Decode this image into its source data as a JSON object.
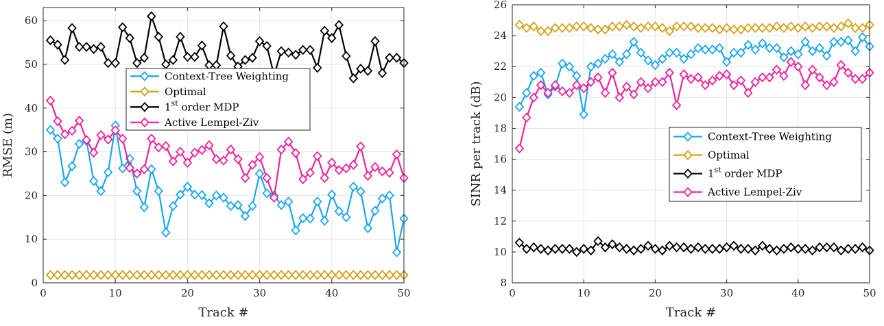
{
  "chart_data": [
    {
      "type": "line",
      "title": "",
      "xlabel": "Track #",
      "ylabel": "RMSE (m)",
      "xlim": [
        0,
        50
      ],
      "ylim": [
        0,
        63
      ],
      "xticks": [
        0,
        10,
        20,
        30,
        40,
        50
      ],
      "yticks": [
        0,
        10,
        20,
        30,
        40,
        50,
        60
      ],
      "grid": true,
      "legend_position": "center",
      "x": [
        1,
        2,
        3,
        4,
        5,
        6,
        7,
        8,
        9,
        10,
        11,
        12,
        13,
        14,
        15,
        16,
        17,
        18,
        19,
        20,
        21,
        22,
        23,
        24,
        25,
        26,
        27,
        28,
        29,
        30,
        31,
        32,
        33,
        34,
        35,
        36,
        37,
        38,
        39,
        40,
        41,
        42,
        43,
        44,
        45,
        46,
        47,
        48,
        49,
        50
      ],
      "series": [
        {
          "name": "Context-Tree Weighting",
          "color": "#1aa7ec",
          "values": [
            35,
            33,
            23,
            26.7,
            31.8,
            32.5,
            23.3,
            21,
            25.3,
            36,
            26.2,
            28.4,
            21,
            17.3,
            26,
            21,
            11.5,
            17.6,
            20.2,
            22,
            20.2,
            20.1,
            18.2,
            20,
            19.5,
            17.6,
            17.8,
            15.3,
            17.6,
            25,
            20.5,
            20,
            17.8,
            18.6,
            12,
            14.8,
            14.7,
            18.6,
            14.2,
            20.2,
            16.4,
            15,
            22,
            20.9,
            12.5,
            16.5,
            19.3,
            20,
            7,
            14.7
          ]
        },
        {
          "name": "Optimal",
          "color": "#d4a017",
          "values": [
            1.8,
            1.8,
            1.8,
            1.8,
            1.8,
            1.8,
            1.8,
            1.8,
            1.8,
            1.8,
            1.8,
            1.8,
            1.8,
            1.8,
            1.8,
            1.8,
            1.8,
            1.8,
            1.8,
            1.8,
            1.8,
            1.8,
            1.8,
            1.8,
            1.8,
            1.8,
            1.8,
            1.8,
            1.8,
            1.8,
            1.8,
            1.8,
            1.8,
            1.8,
            1.8,
            1.8,
            1.8,
            1.8,
            1.8,
            1.8,
            1.8,
            1.8,
            1.8,
            1.8,
            1.8,
            1.8,
            1.8,
            1.8,
            1.8,
            1.8
          ]
        },
        {
          "name": "1st order MDP",
          "color": "#000000",
          "values": [
            55.5,
            54.5,
            51,
            58.3,
            54,
            54,
            53.5,
            54,
            50.3,
            50.3,
            58.5,
            56,
            50.3,
            51.5,
            61,
            56.3,
            50,
            51,
            56.3,
            51.7,
            51.7,
            54.3,
            49.8,
            49.8,
            58.7,
            52,
            49.5,
            51,
            51.5,
            55.3,
            54.2,
            47.5,
            53,
            52.7,
            52.2,
            53.3,
            53.3,
            49.2,
            57.7,
            56,
            59,
            51.9,
            46.8,
            49,
            48.5,
            55.3,
            48,
            51.5,
            51.5,
            50.3
          ]
        },
        {
          "name": "Active Lempel-Ziv",
          "color": "#f0229a",
          "values": [
            41.7,
            37,
            34,
            34.8,
            37.1,
            32.7,
            29.8,
            33.8,
            32.8,
            34.9,
            33,
            26.3,
            25,
            26,
            33,
            31,
            31.3,
            27.8,
            30,
            27.5,
            29.8,
            30.4,
            31.5,
            28.3,
            28,
            30.5,
            28.3,
            24,
            27,
            28.8,
            24,
            19.5,
            30.5,
            32.3,
            29.7,
            23.7,
            25.2,
            29,
            24,
            27.5,
            25.8,
            26.2,
            27,
            31.2,
            24.5,
            26.5,
            25.5,
            25.2,
            29.4,
            24
          ]
        }
      ]
    },
    {
      "type": "line",
      "title": "",
      "xlabel": "Track #",
      "ylabel": "SINR per track (dB)",
      "xlim": [
        0,
        50
      ],
      "ylim": [
        8,
        26
      ],
      "xticks": [
        0,
        10,
        20,
        30,
        40,
        50
      ],
      "yticks": [
        8,
        10,
        12,
        14,
        16,
        18,
        20,
        22,
        24,
        26
      ],
      "grid": true,
      "legend_position": "center-right",
      "x": [
        1,
        2,
        3,
        4,
        5,
        6,
        7,
        8,
        9,
        10,
        11,
        12,
        13,
        14,
        15,
        16,
        17,
        18,
        19,
        20,
        21,
        22,
        23,
        24,
        25,
        26,
        27,
        28,
        29,
        30,
        31,
        32,
        33,
        34,
        35,
        36,
        37,
        38,
        39,
        40,
        41,
        42,
        43,
        44,
        45,
        46,
        47,
        48,
        49,
        50
      ],
      "series": [
        {
          "name": "Context-Tree Weighting",
          "color": "#1aa7ec",
          "values": [
            19.4,
            20.3,
            21.4,
            21.6,
            20.2,
            20.7,
            22.2,
            22,
            21.4,
            18.9,
            22,
            22.2,
            22.5,
            22.8,
            22.3,
            22.8,
            23.6,
            22.9,
            22.4,
            22.1,
            22.5,
            22.9,
            22.9,
            22.5,
            22.8,
            23.2,
            23.1,
            23.1,
            23.2,
            22.3,
            22.9,
            22.9,
            23.4,
            23.1,
            23.5,
            23.2,
            23.2,
            22.6,
            23,
            22.8,
            23.6,
            23,
            23.2,
            22.7,
            23.6,
            23.6,
            23.7,
            23,
            23.9,
            23.3
          ]
        },
        {
          "name": "Optimal",
          "color": "#d4a017",
          "values": [
            24.7,
            24.5,
            24.6,
            24.3,
            24.3,
            24.5,
            24.5,
            24.5,
            24.6,
            24.6,
            24.5,
            24.4,
            24.4,
            24.6,
            24.6,
            24.7,
            24.6,
            24.5,
            24.6,
            24.6,
            24.5,
            24.3,
            24.6,
            24.6,
            24.6,
            24.5,
            24.5,
            24.5,
            24.4,
            24.5,
            24.4,
            24.4,
            24.5,
            24.5,
            24.5,
            24.5,
            24.6,
            24.5,
            24.6,
            24.5,
            24.6,
            24.5,
            24.6,
            24.6,
            24.5,
            24.6,
            24.8,
            24.5,
            24.5,
            24.7
          ]
        },
        {
          "name": "1st order MDP",
          "color": "#000000",
          "values": [
            10.6,
            10.2,
            10.3,
            10.2,
            10.1,
            10.2,
            10.2,
            10.2,
            10,
            10.2,
            10.1,
            10.7,
            10.3,
            10.5,
            10.3,
            10.2,
            10.1,
            10.2,
            10.4,
            10.2,
            10.1,
            10.4,
            10.3,
            10.3,
            10.2,
            10.3,
            10.2,
            10.2,
            10.2,
            10.3,
            10.4,
            10.2,
            10.2,
            10.1,
            10.4,
            10.2,
            10.1,
            10.2,
            10.3,
            10.2,
            10.2,
            10.1,
            10.3,
            10.3,
            10.3,
            10.1,
            10.2,
            10.2,
            10.3,
            10.1
          ]
        },
        {
          "name": "Active Lempel-Ziv",
          "color": "#f0229a",
          "values": [
            16.7,
            18.7,
            20,
            20.8,
            20.3,
            20.8,
            20.4,
            20.3,
            20.8,
            20.6,
            21,
            21.3,
            20.3,
            21.6,
            20,
            20.7,
            20.2,
            21,
            20.6,
            21,
            21,
            21.6,
            19.5,
            21.5,
            21.2,
            21.3,
            20.8,
            21.1,
            21.4,
            21.5,
            20.8,
            21.1,
            20.3,
            21,
            21.3,
            21.3,
            21.8,
            21.4,
            22.3,
            22,
            20.8,
            21.8,
            21.3,
            20.8,
            21,
            22.1,
            21.6,
            21.2,
            21.2,
            21.6
          ]
        }
      ]
    }
  ]
}
